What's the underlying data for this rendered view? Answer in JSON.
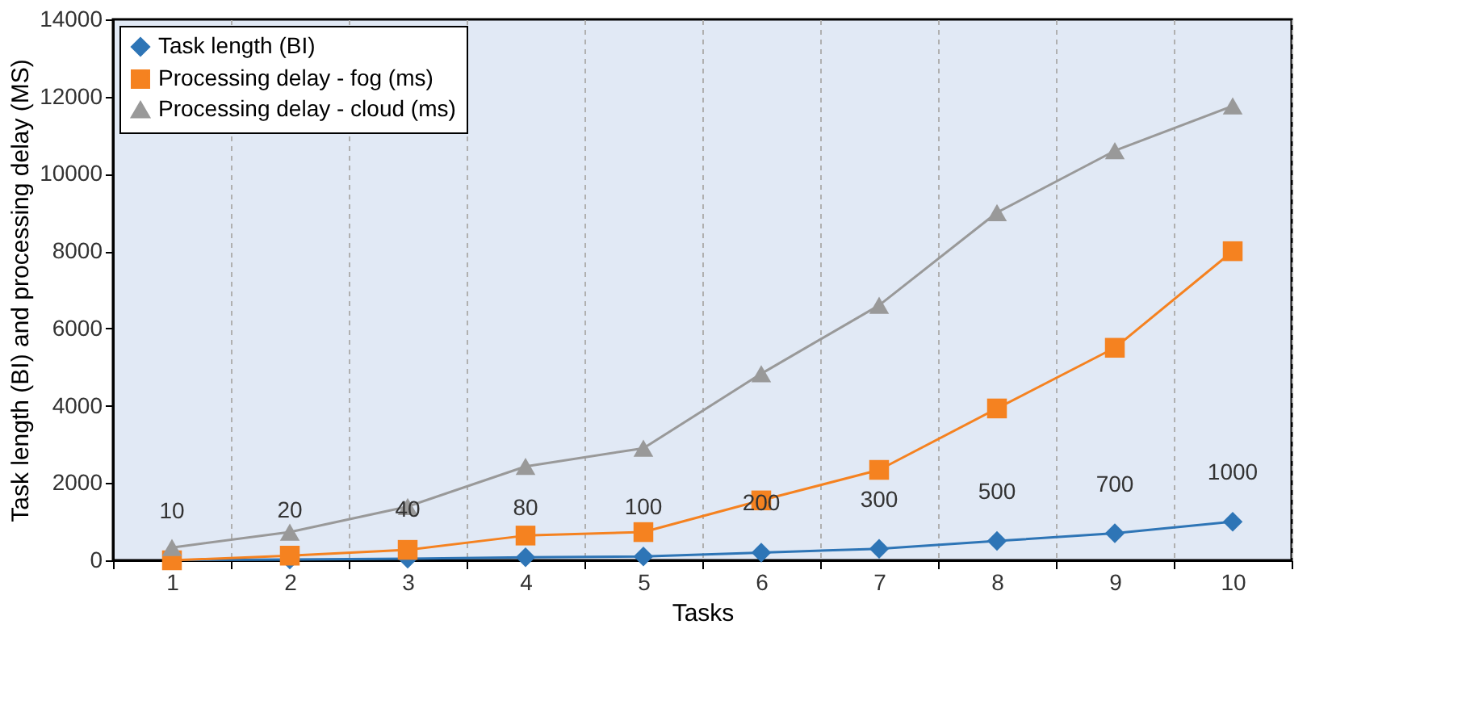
{
  "chart_data": {
    "type": "line",
    "xlabel": "Tasks",
    "ylabel": "Task length (BI) and processing delay (MS)",
    "categories": [
      "1",
      "2",
      "3",
      "4",
      "5",
      "6",
      "7",
      "8",
      "9",
      "10"
    ],
    "series": [
      {
        "name": "Task length (BI)",
        "color": "#2e75b6",
        "marker": "diamond",
        "values": [
          10,
          20,
          40,
          80,
          100,
          200,
          300,
          500,
          700,
          1000
        ],
        "value_labels": [
          "10",
          "20",
          "40",
          "80",
          "100",
          "200",
          "300",
          "500",
          "700",
          "1000"
        ]
      },
      {
        "name": "Processing delay - fog (ms)",
        "color": "#f58220",
        "marker": "square",
        "values": [
          0,
          120,
          270,
          640,
          730,
          1550,
          2340,
          3930,
          5500,
          8000
        ]
      },
      {
        "name": "Processing delay - cloud (ms)",
        "color": "#999999",
        "marker": "triangle",
        "values": [
          330,
          730,
          1390,
          2430,
          2900,
          4830,
          6600,
          9000,
          10600,
          11760
        ]
      }
    ],
    "ylim": [
      0,
      14000
    ],
    "yticks": [
      0,
      2000,
      4000,
      6000,
      8000,
      10000,
      12000,
      14000
    ],
    "grid": "x",
    "legend": "top left",
    "line_style": "solid"
  }
}
